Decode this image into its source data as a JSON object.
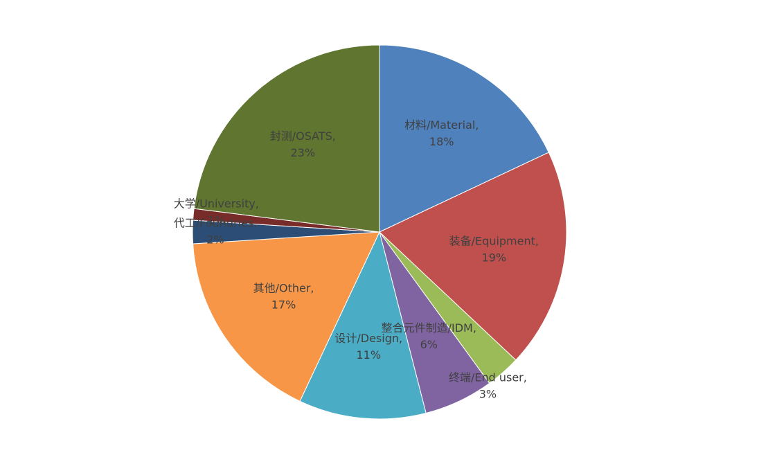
{
  "chart_data": {
    "type": "pie",
    "categories": [
      "材料/Material,",
      "装备/Equipment,",
      "终端/End user,",
      "整合元件制造/IDM,",
      "设计/Design,",
      "其他/Other,",
      "代工/Foundries,",
      "大学/University,",
      "封测/OSATS,"
    ],
    "values": [
      18,
      19,
      3,
      6,
      11,
      17,
      2,
      1,
      23
    ],
    "value_labels": [
      "18%",
      "19%",
      "3%",
      "6%",
      "11%",
      "17%",
      "2%",
      "1%",
      "23%"
    ],
    "colors": [
      "#4f81bd",
      "#c0504d",
      "#9bbb59",
      "#8064a2",
      "#4bacc6",
      "#f79646",
      "#2c4d75",
      "#772c2a",
      "#5f7530"
    ]
  }
}
